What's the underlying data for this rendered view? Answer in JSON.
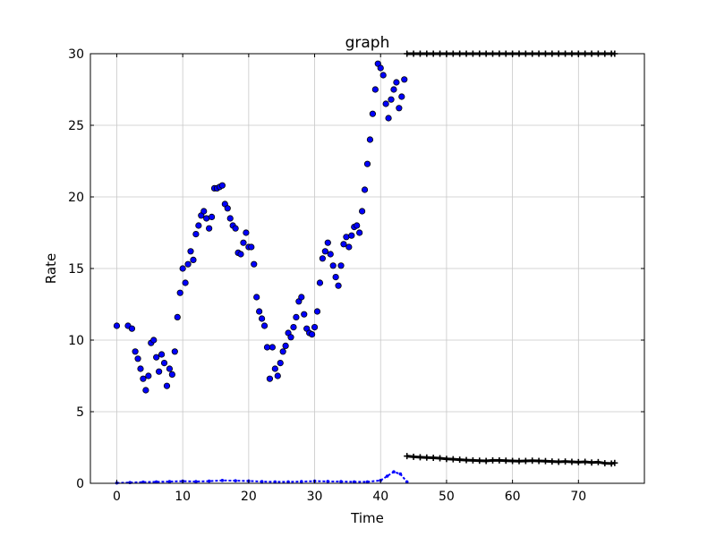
{
  "chart_data": {
    "type": "scatter",
    "title": "graph",
    "xlabel": "Time",
    "ylabel": "Rate",
    "xlim": [
      -4,
      80
    ],
    "ylim": [
      0,
      30
    ],
    "xticks": [
      0,
      10,
      20,
      30,
      40,
      50,
      60,
      70
    ],
    "yticks": [
      0,
      5,
      10,
      15,
      20,
      25,
      30
    ],
    "grid": true,
    "legend": "none",
    "series": [
      {
        "marker": "circle",
        "color": "#0000ff",
        "x": [
          0.0,
          1.7,
          2.3,
          2.8,
          3.2,
          3.6,
          4.0,
          4.4,
          4.8,
          5.2,
          5.6,
          6.0,
          6.4,
          6.8,
          7.2,
          7.6,
          8.0,
          8.4,
          8.8,
          9.2,
          9.6,
          10.0,
          10.4,
          10.8,
          11.2,
          11.6,
          12.0,
          12.4,
          12.8,
          13.2,
          13.6,
          14.0,
          14.4,
          14.8,
          15.2,
          15.6,
          16.0,
          16.4,
          16.8,
          17.2,
          17.6,
          18.0,
          18.4,
          18.8,
          19.2,
          19.6,
          20.0,
          20.4,
          20.8,
          21.2,
          21.6,
          22.0,
          22.4,
          22.8,
          23.2,
          23.6,
          24.0,
          24.4,
          24.8,
          25.2,
          25.6,
          26.0,
          26.4,
          26.8,
          27.2,
          27.6,
          28.0,
          28.4,
          28.8,
          29.2,
          29.6,
          30.0,
          30.4,
          30.8,
          31.2,
          31.6,
          32.0,
          32.4,
          32.8,
          33.2,
          33.6,
          34.0,
          34.4,
          34.8,
          35.2,
          35.6,
          36.0,
          36.4,
          36.8,
          37.2,
          37.6,
          38.0,
          38.4,
          38.8,
          39.2,
          39.6,
          40.0,
          40.4,
          40.8,
          41.2,
          41.6,
          42.0,
          42.4,
          42.8,
          43.2,
          43.6
        ],
        "y": [
          11.0,
          11.0,
          10.8,
          9.2,
          8.7,
          8.0,
          7.3,
          6.5,
          7.5,
          9.8,
          10.0,
          8.8,
          7.8,
          9.0,
          8.4,
          6.8,
          8.0,
          7.6,
          9.2,
          11.6,
          13.3,
          15.0,
          14.0,
          15.3,
          16.2,
          15.6,
          17.4,
          18.0,
          18.7,
          19.0,
          18.5,
          17.8,
          18.6,
          20.6,
          20.6,
          20.7,
          20.8,
          19.5,
          19.2,
          18.5,
          18.0,
          17.8,
          16.1,
          16.0,
          16.8,
          17.5,
          16.5,
          16.5,
          15.3,
          13.0,
          12.0,
          11.5,
          11.0,
          9.5,
          7.3,
          9.5,
          8.0,
          7.5,
          8.4,
          9.2,
          9.6,
          10.5,
          10.2,
          10.9,
          11.6,
          12.7,
          13.0,
          11.8,
          10.8,
          10.5,
          10.4,
          10.9,
          12.0,
          14.0,
          15.7,
          16.2,
          16.8,
          16.0,
          15.2,
          14.4,
          13.8,
          15.2,
          16.7,
          17.2,
          16.5,
          17.3,
          17.9,
          18.0,
          17.5,
          19.0,
          20.5,
          22.3,
          24.0,
          25.8,
          27.5,
          29.3,
          29.0,
          28.5,
          26.5,
          25.5,
          26.8,
          27.5,
          28.0,
          26.2,
          27.0,
          28.2
        ]
      },
      {
        "marker": "plus",
        "color": "#000000",
        "x": [
          44,
          45,
          46,
          47,
          48,
          49,
          50,
          51,
          52,
          53,
          54,
          55,
          56,
          57,
          58,
          59,
          60,
          61,
          62,
          63,
          64,
          65,
          66,
          67,
          68,
          69,
          70,
          71,
          72,
          73,
          74,
          75,
          75.5
        ],
        "y_upper": 30.0,
        "y_lower": [
          1.9,
          1.85,
          1.82,
          1.8,
          1.78,
          1.75,
          1.7,
          1.68,
          1.65,
          1.62,
          1.6,
          1.58,
          1.56,
          1.6,
          1.6,
          1.58,
          1.56,
          1.55,
          1.56,
          1.58,
          1.56,
          1.55,
          1.52,
          1.5,
          1.52,
          1.5,
          1.48,
          1.5,
          1.45,
          1.48,
          1.4,
          1.38,
          1.42
        ]
      },
      {
        "marker": "small-dot",
        "color": "#0000ff",
        "x": [
          0,
          2,
          4,
          6,
          8,
          10,
          12,
          14,
          16,
          18,
          20,
          22,
          24,
          26,
          28,
          30,
          32,
          34,
          36,
          38,
          40,
          41,
          42,
          43,
          44
        ],
        "y": [
          0.02,
          0.05,
          0.08,
          0.1,
          0.12,
          0.15,
          0.12,
          0.15,
          0.2,
          0.18,
          0.16,
          0.12,
          0.1,
          0.1,
          0.12,
          0.15,
          0.13,
          0.12,
          0.1,
          0.1,
          0.2,
          0.5,
          0.8,
          0.65,
          0.1
        ]
      }
    ]
  }
}
